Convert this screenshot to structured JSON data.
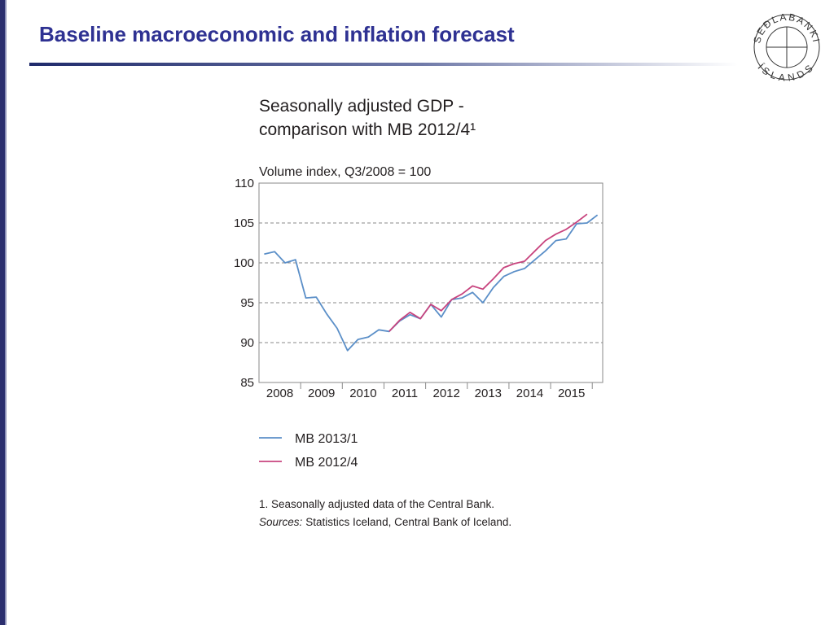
{
  "header": {
    "title": "Baseline macroeconomic and inflation forecast"
  },
  "logo": {
    "top": "SEÐLABANKI",
    "bottom": "ÍSLANDS"
  },
  "chart_data": {
    "type": "line",
    "title": [
      "Seasonally adjusted GDP -",
      "comparison with MB 2012/4¹"
    ],
    "y_label": "Volume index, Q3/2008 = 100",
    "x": [
      2008,
      2008.25,
      2008.5,
      2008.75,
      2009,
      2009.25,
      2009.5,
      2009.75,
      2010,
      2010.25,
      2010.5,
      2010.75,
      2011,
      2011.25,
      2011.5,
      2011.75,
      2012,
      2012.25,
      2012.5,
      2012.75,
      2013,
      2013.25,
      2013.5,
      2013.75,
      2014,
      2014.25,
      2014.5,
      2014.75,
      2015,
      2015.25,
      2015.5,
      2015.75,
      2016
    ],
    "series": [
      {
        "name": "MB 2013/1",
        "color": "#5b8fc8",
        "values": [
          101.1,
          101.4,
          100.0,
          100.4,
          95.6,
          95.7,
          93.6,
          91.8,
          89.0,
          90.4,
          90.7,
          91.6,
          91.4,
          92.7,
          93.5,
          93.0,
          94.8,
          93.2,
          95.4,
          95.6,
          96.3,
          95.0,
          96.9,
          98.3,
          98.9,
          99.3,
          100.4,
          101.5,
          102.8,
          103.0,
          104.9,
          105.0,
          106.0
        ]
      },
      {
        "name": "MB 2012/4",
        "color": "#c8457f",
        "values": [
          null,
          null,
          null,
          null,
          null,
          null,
          null,
          null,
          null,
          null,
          null,
          null,
          91.4,
          92.8,
          93.8,
          93.0,
          94.8,
          94.0,
          95.4,
          96.1,
          97.1,
          96.7,
          98.0,
          99.4,
          99.9,
          100.2,
          101.5,
          102.8,
          103.6,
          104.2,
          105.1,
          106.1,
          null
        ]
      }
    ],
    "xlim": [
      2007.875,
      2016.125
    ],
    "xticks": [
      {
        "value": 2008,
        "label": "2008"
      },
      {
        "value": 2009,
        "label": "2009"
      },
      {
        "value": 2010,
        "label": "2010"
      },
      {
        "value": 2011,
        "label": "2011"
      },
      {
        "value": 2012,
        "label": "2012"
      },
      {
        "value": 2013,
        "label": "2013"
      },
      {
        "value": 2014,
        "label": "2014"
      },
      {
        "value": 2015,
        "label": "2015"
      }
    ],
    "ylim": [
      85,
      110
    ],
    "yticks": [
      85,
      90,
      95,
      100,
      105,
      110
    ],
    "grid": true,
    "legend": "bottom",
    "notes": [
      "1. Seasonally adjusted data of the Central Bank."
    ],
    "sources_label": "Sources:",
    "sources": "Statistics Iceland, Central Bank of Iceland."
  }
}
